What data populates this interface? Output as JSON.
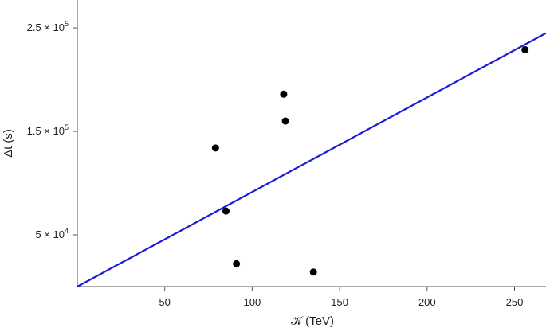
{
  "chart_data": {
    "type": "scatter",
    "xlabel": "𝒦 (TeV)",
    "ylabel": "Δt (s)",
    "x_ticks": [
      50,
      100,
      150,
      200,
      250
    ],
    "y_ticks": [
      {
        "value": 50000,
        "mantissa": "5",
        "base": "× 10",
        "exp": "4"
      },
      {
        "value": 150000,
        "mantissa": "1.5",
        "base": "× 10",
        "exp": "5"
      },
      {
        "value": 250000,
        "mantissa": "2.5",
        "base": "× 10",
        "exp": "5"
      }
    ],
    "xlim": [
      0,
      268
    ],
    "ylim": [
      0,
      277000
    ],
    "points": [
      {
        "x": 79,
        "y": 134000
      },
      {
        "x": 85,
        "y": 73000
      },
      {
        "x": 91,
        "y": 22000
      },
      {
        "x": 118,
        "y": 186000
      },
      {
        "x": 119,
        "y": 160000
      },
      {
        "x": 135,
        "y": 14000
      },
      {
        "x": 256,
        "y": 229000
      }
    ],
    "fit_line": {
      "x": [
        0,
        268
      ],
      "y": [
        0,
        245000
      ]
    },
    "colors": {
      "points": "#000000",
      "fit_line": "#1a1adb",
      "axis": "#555555"
    },
    "grid": false
  }
}
